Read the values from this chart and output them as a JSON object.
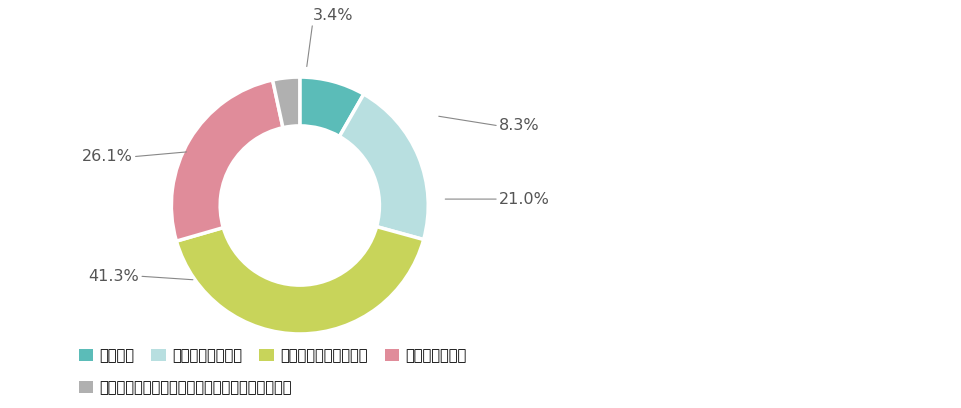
{
  "labels": [
    "変わった",
    "ある程度変わった",
    "あまり変わっていない",
    "変わっていない",
    "今後の仕事や働くことについて考えたことがない"
  ],
  "values": [
    8.3,
    21.0,
    41.3,
    26.1,
    3.4
  ],
  "colors": [
    "#5bbcb8",
    "#b8dfe0",
    "#c8d45a",
    "#e08c9a",
    "#b0b0b0"
  ],
  "donut_width": 0.38,
  "start_angle": 90,
  "label_fontsize": 11.5,
  "legend_fontsize": 10.5,
  "background_color": "#ffffff",
  "text_color": "#555555",
  "line_color": "#888888"
}
